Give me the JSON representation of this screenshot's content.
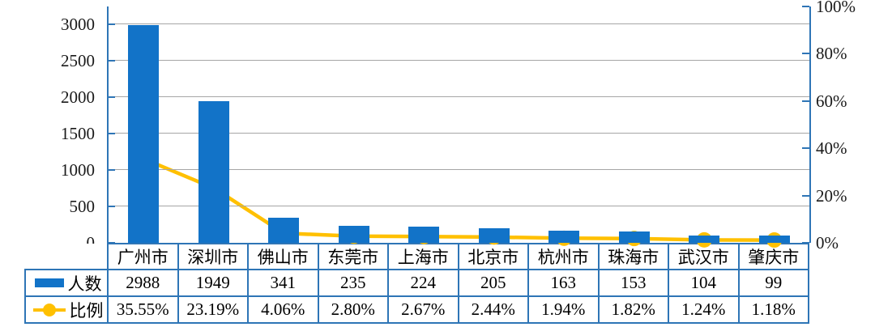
{
  "chart_data": {
    "type": "bar",
    "combo": "bar+line dual axis",
    "title": "",
    "categories": [
      "广州市",
      "深圳市",
      "佛山市",
      "东莞市",
      "上海市",
      "北京市",
      "杭州市",
      "珠海市",
      "武汉市",
      "肇庆市"
    ],
    "series": [
      {
        "name": "人数",
        "type": "bar",
        "axis": "left",
        "color": "#1273C8",
        "values": [
          2988,
          1949,
          341,
          235,
          224,
          205,
          163,
          153,
          104,
          99
        ]
      },
      {
        "name": "比例",
        "type": "line",
        "axis": "right",
        "color": "#FFC000",
        "values": [
          35.55,
          23.19,
          4.06,
          2.8,
          2.67,
          2.44,
          1.94,
          1.82,
          1.24,
          1.18
        ]
      }
    ],
    "left_axis": {
      "min": 0,
      "max": 3000,
      "step": 500,
      "labels": [
        "0",
        "500",
        "1000",
        "1500",
        "2000",
        "2500",
        "3000"
      ]
    },
    "right_axis": {
      "min": 0,
      "max": 100,
      "step": 20,
      "labels": [
        "0%",
        "20%",
        "40%",
        "60%",
        "80%",
        "100%"
      ]
    },
    "grid": true,
    "legend_position": "table-left"
  },
  "table": {
    "legend_rows": [
      {
        "label": "人数",
        "icon": "bar-swatch"
      },
      {
        "label": "比例",
        "icon": "line-marker-swatch"
      }
    ],
    "cities": [
      "广州市",
      "深圳市",
      "佛山市",
      "东莞市",
      "上海市",
      "北京市",
      "杭州市",
      "珠海市",
      "武汉市",
      "肇庆市"
    ],
    "counts_display": [
      "2988",
      "1949",
      "341",
      "235",
      "224",
      "205",
      "163",
      "153",
      "104",
      "99"
    ],
    "percents_display": [
      "35.55%",
      "23.19%",
      "4.06%",
      "2.80%",
      "2.67%",
      "2.44%",
      "1.94%",
      "1.82%",
      "1.24%",
      "1.18%"
    ]
  },
  "colors": {
    "bar": "#1273C8",
    "line": "#FFC000",
    "axis": "#2E75B6",
    "table_border": "#2E75B6",
    "gridline": "#A6A6A6",
    "text": "#1a1a1a"
  }
}
